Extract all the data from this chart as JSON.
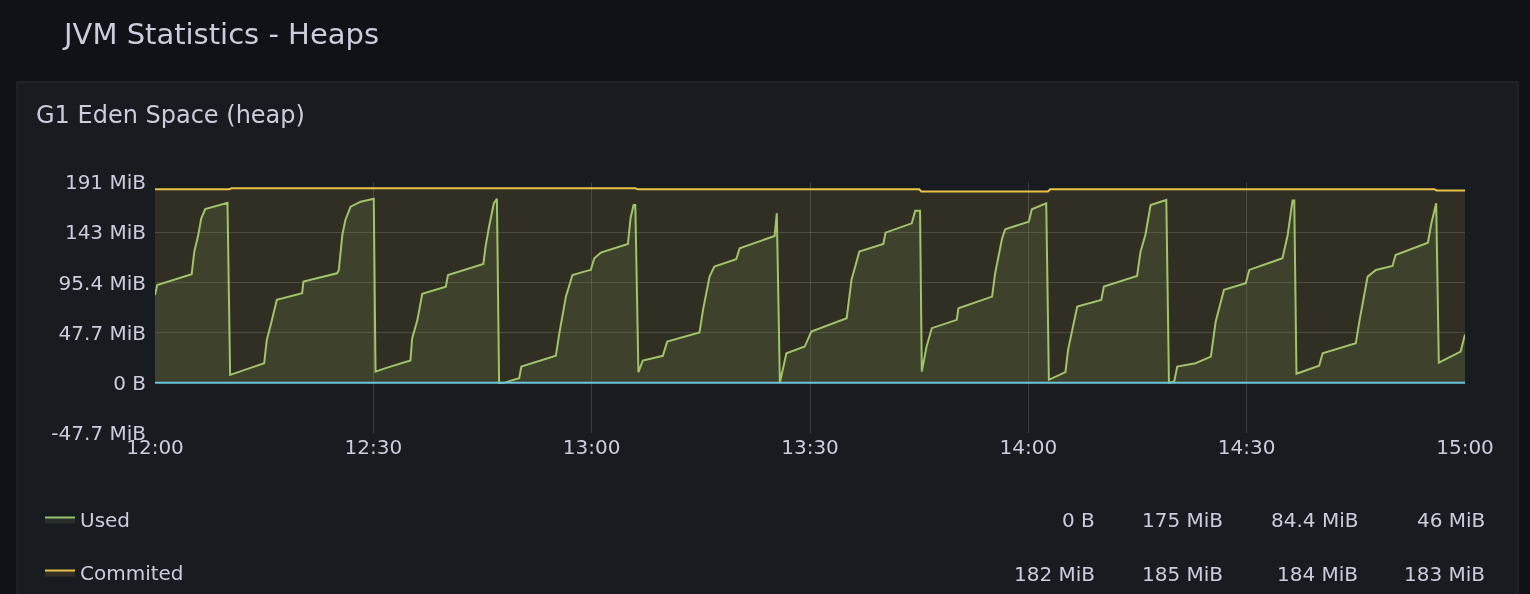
{
  "chart_data": {
    "type": "area",
    "title": "JVM Statistics - Heaps",
    "subtitle": "G1 Eden Space (heap)",
    "xlim": [
      12,
      15
    ],
    "xticks": [
      {
        "value": 12,
        "label": "12:00"
      },
      {
        "value": 12.5,
        "label": "12:30"
      },
      {
        "value": 13,
        "label": "13:00"
      },
      {
        "value": 13.5,
        "label": "13:30"
      },
      {
        "value": 14,
        "label": "14:00"
      },
      {
        "value": 14.5,
        "label": "14:30"
      },
      {
        "value": 15,
        "label": "15:00"
      }
    ],
    "ylim": [
      -47.7,
      191
    ],
    "yticks": [
      {
        "value": -47.7,
        "label": "-47.7 MiB"
      },
      {
        "value": 0,
        "label": "0 B"
      },
      {
        "value": 47.7,
        "label": "47.7 MiB"
      },
      {
        "value": 95.4,
        "label": "95.4 MiB"
      },
      {
        "value": 143,
        "label": "143 MiB"
      },
      {
        "value": 191,
        "label": "191 MiB"
      }
    ],
    "grid": true,
    "legend": "bottom",
    "annotations": [
      "0 B",
      "175 MiB",
      "84.4 MiB",
      "46 MiB",
      "182 MiB",
      "185 MiB",
      "184 MiB",
      "183 MiB"
    ],
    "series": [
      {
        "name": "Used",
        "color": "#96c46e",
        "x": [
          12.0,
          12.005,
          12.084,
          12.09,
          12.099,
          12.106,
          12.115,
          12.166,
          12.172,
          12.184,
          12.25,
          12.256,
          12.266,
          12.279,
          12.337,
          12.34,
          12.417,
          12.421,
          12.429,
          12.436,
          12.448,
          12.471,
          12.501,
          12.505,
          12.528,
          12.585,
          12.589,
          12.601,
          12.612,
          12.666,
          12.671,
          12.752,
          12.757,
          12.765,
          12.776,
          12.783,
          12.788,
          12.799,
          12.834,
          12.839,
          12.918,
          12.926,
          12.941,
          12.956,
          12.991,
          12.998,
          13.006,
          13.021,
          13.083,
          13.089,
          13.096,
          13.1,
          13.107,
          13.117,
          13.163,
          13.173,
          13.247,
          13.255,
          13.27,
          13.281,
          13.331,
          13.339,
          13.419,
          13.424,
          13.431,
          13.446,
          13.488,
          13.503,
          13.584,
          13.595,
          13.613,
          13.668,
          13.673,
          13.733,
          13.741,
          13.752,
          13.756,
          13.767,
          13.779,
          13.836,
          13.84,
          13.917,
          13.924,
          13.94,
          13.947,
          14.001,
          14.008,
          14.041,
          14.047,
          14.085,
          14.091,
          14.112,
          14.167,
          14.173,
          14.249,
          14.257,
          14.268,
          14.28,
          14.316,
          14.322,
          14.334,
          14.341,
          14.383,
          14.418,
          14.429,
          14.448,
          14.498,
          14.506,
          14.582,
          14.594,
          14.605,
          14.609,
          14.614,
          14.666,
          14.674,
          14.75,
          14.758,
          14.777,
          14.796,
          14.834,
          14.841,
          14.915,
          14.923,
          14.934,
          14.94,
          14.99,
          15.0
        ],
        "values": [
          83.6,
          93.1,
          103.3,
          124.8,
          140.6,
          156.5,
          165.3,
          171.3,
          7.6,
          9.2,
          18.7,
          40.9,
          56.7,
          78.9,
          85.2,
          96.3,
          104.2,
          107.4,
          140.6,
          154.9,
          167.5,
          172.3,
          175,
          10.7,
          14.0,
          21.2,
          42.5,
          59.9,
          84.6,
          91.5,
          102.6,
          113.1,
          129.5,
          148.5,
          170.8,
          175,
          0,
          0,
          4.5,
          15.5,
          25.7,
          47.2,
          82,
          102.6,
          106.7,
          107.4,
          118.5,
          123.8,
          132.1,
          156.5,
          169.1,
          169.1,
          10.2,
          21.2,
          25.7,
          39.2,
          47.8,
          69.4,
          101,
          110.5,
          117.5,
          128,
          139.7,
          161.2,
          0,
          28.2,
          34.5,
          48.7,
          61.5,
          97.9,
          124.8,
          132.1,
          142.8,
          151.7,
          163.7,
          163.7,
          10.7,
          34.5,
          52,
          59.9,
          71,
          82,
          104.2,
          137.5,
          146,
          153.3,
          165,
          170.8,
          2.9,
          10.2,
          31.4,
          72.5,
          78.9,
          91.5,
          101.7,
          124.8,
          140.6,
          169.1,
          173.9,
          0,
          1.2,
          15.5,
          18.7,
          25,
          58.2,
          88.4,
          94.7,
          107.4,
          118.5,
          140.6,
          173.3,
          173.3,
          8.6,
          16.2,
          28.2,
          37.7,
          58.2,
          101,
          107.4,
          111.2,
          121.6,
          133.3,
          151.7,
          170.8,
          19.3,
          29.7,
          46
        ]
      },
      {
        "name": "Commited",
        "color": "#eac248",
        "x": [
          12,
          12.17,
          12.175,
          13.1,
          13.105,
          13.75,
          13.755,
          14.045,
          14.05,
          14.93,
          14.935,
          15
        ],
        "values": [
          184,
          184,
          185,
          185,
          184,
          184,
          182,
          182,
          184,
          184,
          183,
          183
        ]
      },
      {
        "type": "line",
        "color": "#6cc4dc",
        "x": [
          12,
          15
        ],
        "values": [
          0,
          0
        ]
      }
    ]
  }
}
